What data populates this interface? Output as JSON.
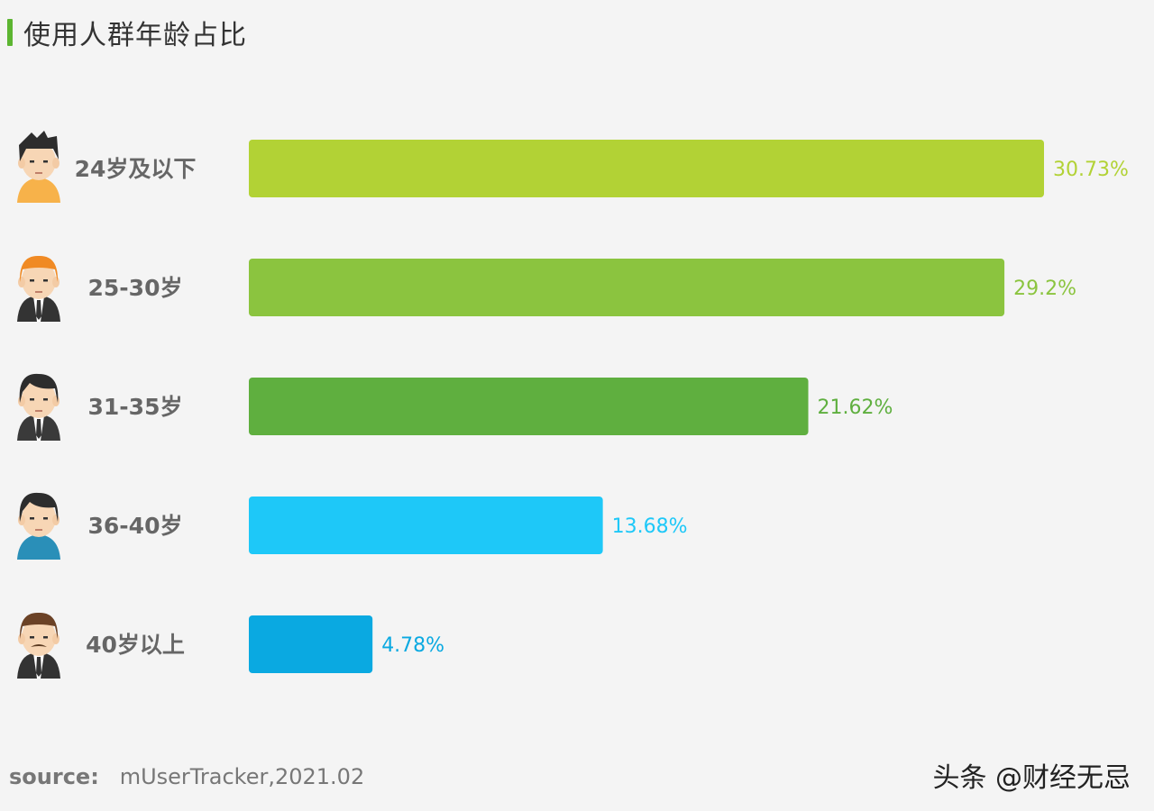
{
  "title": "使用人群年龄占比",
  "chart_data": {
    "type": "bar",
    "orientation": "horizontal",
    "categories": [
      "24岁及以下",
      "25-30岁",
      "31-35岁",
      "36-40岁",
      "40岁以上"
    ],
    "values": [
      30.73,
      29.2,
      21.62,
      13.68,
      4.78
    ],
    "value_labels": [
      "30.73%",
      "29.2%",
      "21.62%",
      "13.68%",
      "4.78%"
    ],
    "colors": [
      "#b2d235",
      "#8bc43f",
      "#5faf3f",
      "#1ec8f8",
      "#0aa9e1"
    ],
    "avatars": [
      "young-man-orange-shirt-icon",
      "red-hair-man-suit-icon",
      "businessman-icon",
      "man-blue-shirt-icon",
      "mustache-man-suit-icon"
    ],
    "xlim": [
      0,
      30.73
    ],
    "grid": false,
    "legend": "none"
  },
  "source": {
    "prefix": "source:",
    "text": "mUserTracker,2021.02"
  },
  "watermark": "头条 @财经无忌"
}
